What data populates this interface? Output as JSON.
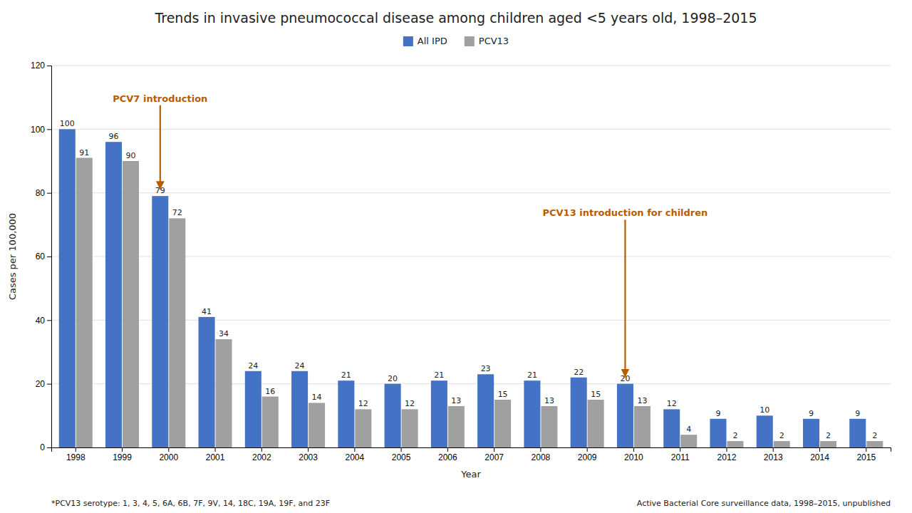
{
  "chart_data": {
    "type": "bar",
    "title": "Trends in invasive pneumococcal disease among children aged <5 years old, 1998–2015",
    "xlabel": "Year",
    "ylabel": "Cases per 100,000",
    "categories": [
      "1998",
      "1999",
      "2000",
      "2001",
      "2002",
      "2003",
      "2004",
      "2005",
      "2006",
      "2007",
      "2008",
      "2009",
      "2010",
      "2011",
      "2012",
      "2013",
      "2014",
      "2015"
    ],
    "series": [
      {
        "name": "All IPD",
        "color": "#4472C4",
        "values": [
          100,
          96,
          79,
          41,
          24,
          24,
          21,
          20,
          21,
          23,
          21,
          22,
          20,
          12,
          9,
          10,
          9,
          9
        ]
      },
      {
        "name": "PCV13",
        "color": "#A0A0A0",
        "values": [
          91,
          90,
          72,
          34,
          16,
          14,
          12,
          12,
          13,
          15,
          13,
          15,
          13,
          4,
          2,
          2,
          2,
          2
        ]
      }
    ],
    "ylim": [
      0,
      120
    ],
    "yticks": [
      0,
      20,
      40,
      60,
      80,
      100,
      120
    ],
    "grid": true,
    "legend": "top",
    "data_labels": true,
    "annotations": [
      {
        "text": "PCV7 introduction",
        "x": "2000",
        "y": 81,
        "text_y": 108,
        "color": "#B85C00"
      },
      {
        "text": "PCV13 introduction for children",
        "x": "2010",
        "y": 22,
        "text_y": 72,
        "color": "#B85C00"
      }
    ],
    "footnotes": [
      "*PCV13 serotype: 1, 3, 4, 5, 6A, 6B, 7F, 9V, 14, 18C, 19A, 19F, and 23F",
      "Active Bacterial Core surveillance data, 1998–2015,  unpublished"
    ]
  }
}
